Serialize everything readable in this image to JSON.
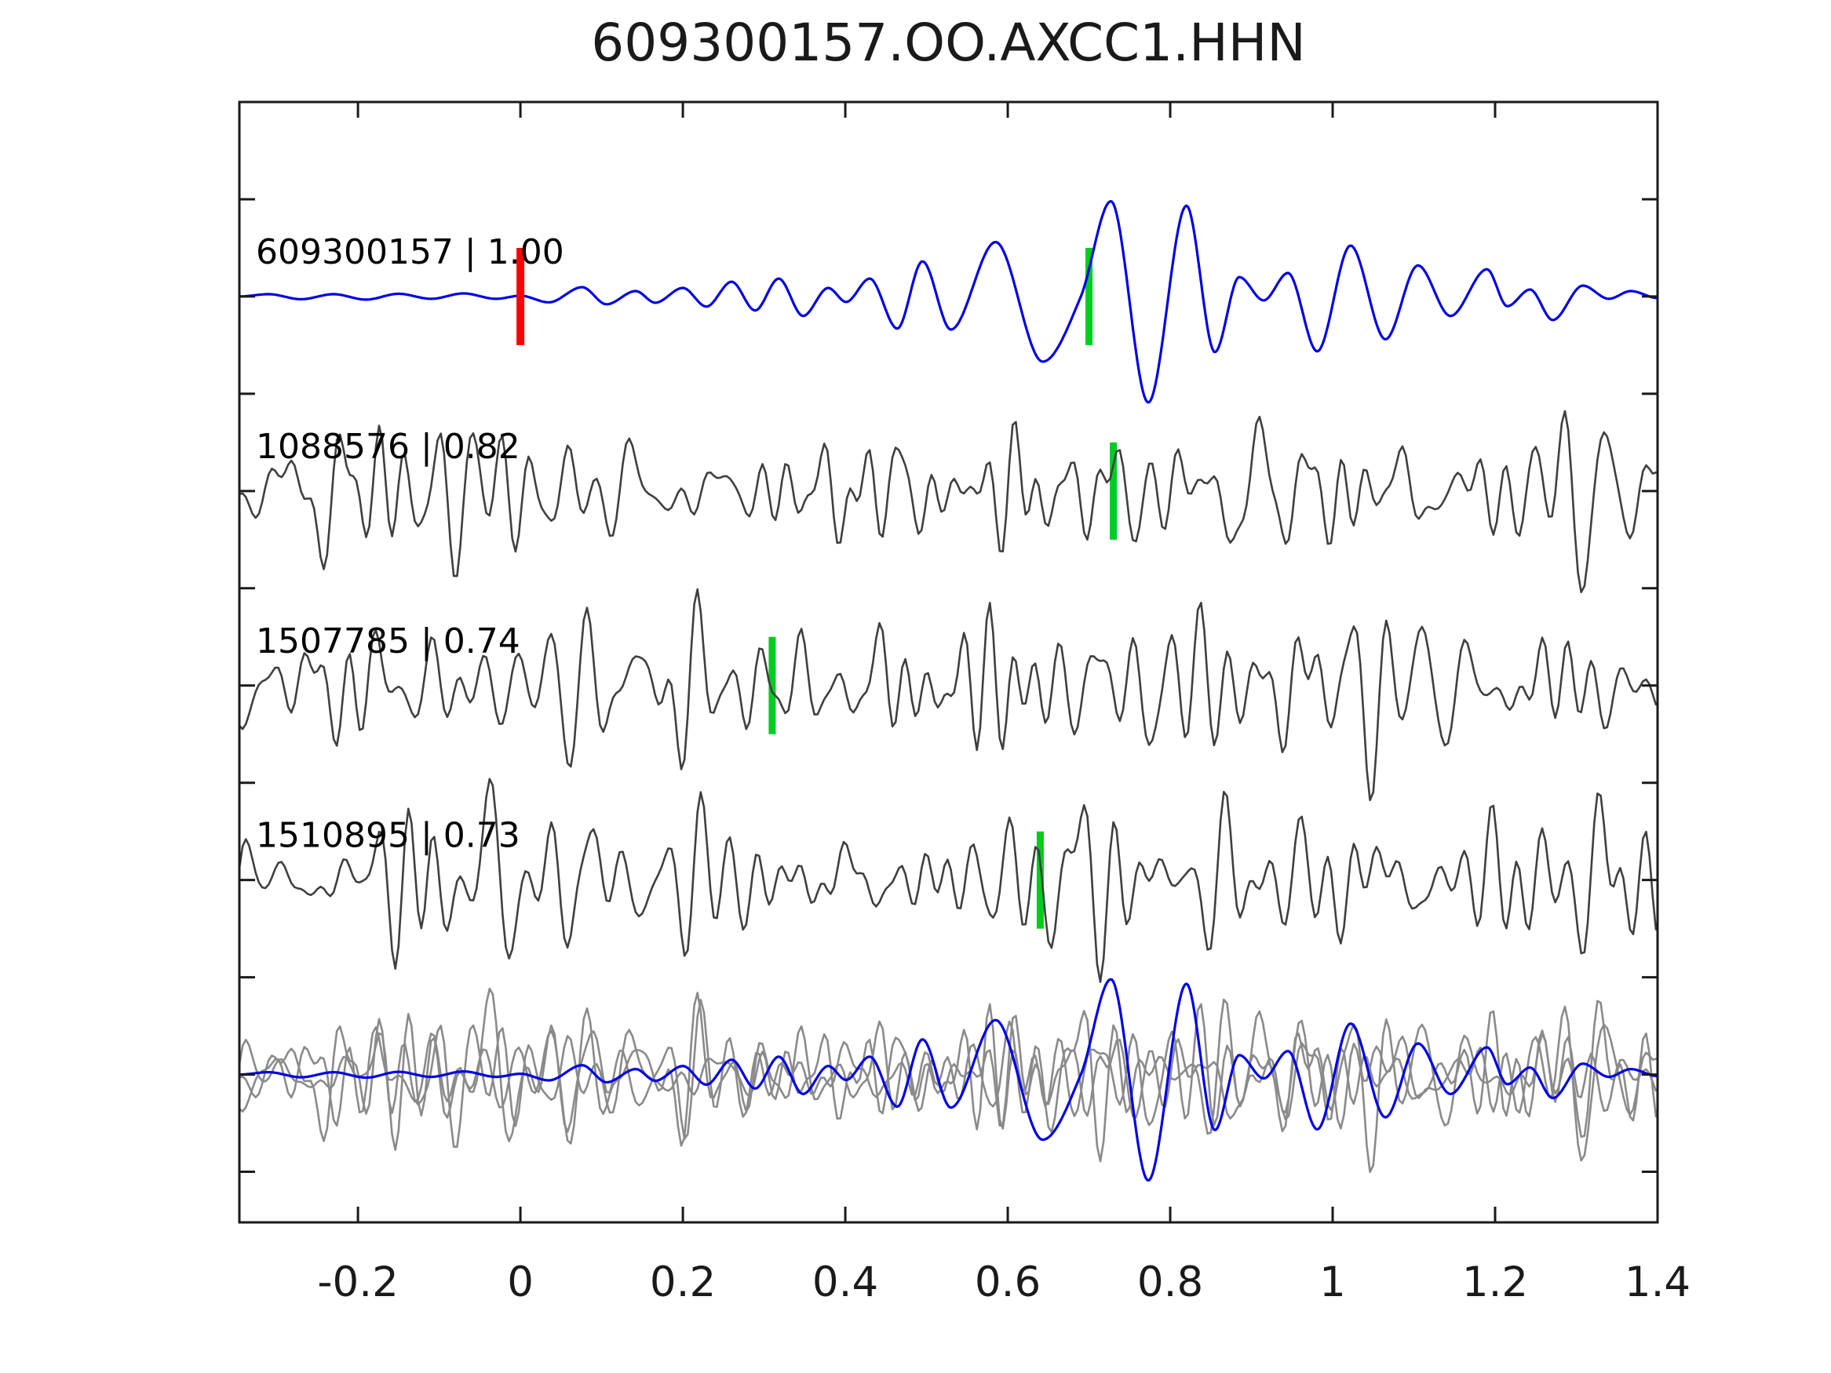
{
  "figure": {
    "title": "609300157.OO.AXCC1.HHN",
    "background": "#ffffff"
  },
  "chart_data": {
    "type": "line",
    "subtype": "seismic-waveform-alignment",
    "title": "609300157.OO.AXCC1.HHN",
    "xlabel": "",
    "ylabel": "",
    "xlim": [
      -0.346,
      1.4
    ],
    "ylim": [
      -0.76,
      5.0
    ],
    "xticks": [
      -0.2,
      0,
      0.2,
      0.4,
      0.6,
      0.8,
      1,
      1.2,
      1.4
    ],
    "xtick_labels": [
      "-0.2",
      "0",
      "0.2",
      "0.4",
      "0.6",
      "0.8",
      "1",
      "1.2",
      "1.4"
    ],
    "ytick_start": -0.5,
    "ytick_step": 0.5,
    "ytick_count": 11,
    "ytick_labels": [],
    "grid": false,
    "legend": null,
    "pick_half_height": 0.25,
    "colors": {
      "master": "#0000e6",
      "trace": "#3f3f3f",
      "overlay_gray": "#8a8a8a",
      "pick": "#00cc22",
      "template_origin": "#ff0000",
      "axis": "#1a1a1a",
      "text": "#000000"
    },
    "traces": [
      {
        "name": "609300157",
        "label": "609300157 | 1.00",
        "correlation": 1.0,
        "row_offset": 4,
        "style": "master",
        "markers": [
          {
            "x": 0.0,
            "type": "template-origin",
            "color": "#ff0000"
          },
          {
            "x": 0.7,
            "type": "pick",
            "color": "#00cc22"
          }
        ],
        "keypoints": {
          "x": [
            -0.346,
            -0.31,
            -0.27,
            -0.23,
            -0.19,
            -0.15,
            -0.11,
            -0.07,
            -0.03,
            0.0,
            0.035,
            0.076,
            0.106,
            0.142,
            0.166,
            0.2,
            0.229,
            0.26,
            0.289,
            0.318,
            0.348,
            0.379,
            0.401,
            0.43,
            0.464,
            0.495,
            0.53,
            0.585,
            0.643,
            0.69,
            0.727,
            0.773,
            0.82,
            0.855,
            0.885,
            0.915,
            0.945,
            0.981,
            1.022,
            1.065,
            1.105,
            1.145,
            1.19,
            1.215,
            1.243,
            1.271,
            1.308,
            1.34,
            1.367,
            1.4
          ],
          "y": [
            0.0,
            0.012,
            -0.014,
            0.012,
            -0.016,
            0.014,
            -0.012,
            0.016,
            -0.012,
            0.004,
            -0.03,
            0.048,
            -0.04,
            0.028,
            -0.032,
            0.044,
            -0.052,
            0.076,
            -0.072,
            0.092,
            -0.1,
            0.044,
            -0.028,
            0.092,
            -0.165,
            0.181,
            -0.17,
            0.28,
            -0.335,
            0.0,
            0.49,
            -0.545,
            0.467,
            -0.286,
            0.1,
            -0.02,
            0.121,
            -0.282,
            0.262,
            -0.22,
            0.16,
            -0.1,
            0.14,
            -0.05,
            0.036,
            -0.121,
            0.056,
            -0.012,
            0.028,
            -0.008
          ]
        }
      },
      {
        "name": "1088576",
        "label": "1088576 | 0.82",
        "correlation": 0.82,
        "row_offset": 3,
        "style": "noise",
        "markers": [
          {
            "x": 0.73,
            "type": "pick",
            "color": "#00cc22"
          }
        ],
        "synth": {
          "seed": 1088576,
          "f_lo": 6,
          "f_hi": 40,
          "f_peak": 24,
          "rms": 0.165,
          "dx": 0.004
        }
      },
      {
        "name": "1507785",
        "label": "1507785 | 0.74",
        "correlation": 0.74,
        "row_offset": 2,
        "style": "noise",
        "markers": [
          {
            "x": 0.31,
            "type": "pick",
            "color": "#00cc22"
          }
        ],
        "synth": {
          "seed": 1507785,
          "f_lo": 6,
          "f_hi": 40,
          "f_peak": 24,
          "rms": 0.165,
          "dx": 0.004
        }
      },
      {
        "name": "1510895",
        "label": "1510895 | 0.73",
        "correlation": 0.73,
        "row_offset": 1,
        "style": "noise",
        "markers": [
          {
            "x": 0.64,
            "type": "pick",
            "color": "#00cc22"
          }
        ],
        "synth": {
          "seed": 1510895,
          "f_lo": 6,
          "f_hi": 40,
          "f_peak": 24,
          "rms": 0.165,
          "dx": 0.004
        }
      }
    ],
    "overlay_row": {
      "row_offset": 0,
      "members": [
        "1088576",
        "1507785",
        "1510895"
      ],
      "member_scale": 0.85,
      "master": "609300157",
      "master_scale": 1.0
    }
  }
}
